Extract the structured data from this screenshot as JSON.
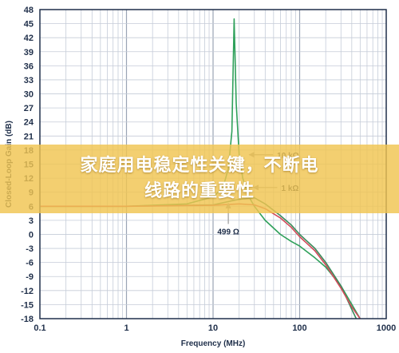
{
  "banner": {
    "line1": "家庭用电稳定性关键，不断电",
    "line2": "线路的重要性"
  },
  "chart_data": {
    "type": "line",
    "xlabel": "Frequency (MHz)",
    "ylabel": "Closed-Loop Gain (dB)",
    "xscale": "log",
    "xlim": [
      0.1,
      1000
    ],
    "ylim": [
      -18,
      48
    ],
    "x_ticks": [
      "0.1",
      "1",
      "10",
      "100",
      "1000"
    ],
    "y_ticks": [
      48,
      45,
      42,
      39,
      36,
      33,
      30,
      27,
      24,
      21,
      18,
      15,
      12,
      9,
      6,
      3,
      0,
      -3,
      -6,
      -9,
      -12,
      -15,
      -18
    ],
    "grid": true,
    "series": [
      {
        "name": "10 kΩ",
        "color": "#2ea05a",
        "x": [
          0.1,
          1,
          5,
          10,
          13,
          15,
          16.5,
          17.5,
          18.5,
          20,
          22,
          26,
          30,
          40,
          60,
          80,
          100,
          150,
          200,
          300,
          500
        ],
        "y": [
          6,
          6,
          6.5,
          8,
          10,
          14,
          22,
          46,
          28,
          17,
          12,
          8,
          6,
          3,
          0,
          -1.5,
          -2.5,
          -5,
          -7,
          -11,
          -18
        ]
      },
      {
        "name": "1 kΩ",
        "color": "#3a8a5a",
        "x": [
          0.1,
          1,
          10,
          20,
          30,
          40,
          60,
          80,
          100,
          150,
          200,
          300,
          400,
          450
        ],
        "y": [
          6,
          6,
          6.3,
          7.5,
          7.8,
          6.5,
          4,
          2,
          0,
          -3,
          -6,
          -11,
          -16,
          -18
        ]
      },
      {
        "name": "499 Ω",
        "color": "#d24a5a",
        "x": [
          0.1,
          1,
          10,
          20,
          30,
          40,
          60,
          80,
          100,
          150,
          200,
          300,
          400,
          500
        ],
        "y": [
          6,
          6,
          6.2,
          6.5,
          6.3,
          5.5,
          3.5,
          1.5,
          -0.5,
          -3.5,
          -6.5,
          -11.5,
          -15.5,
          -18
        ]
      }
    ],
    "annotations": [
      {
        "text": "10 kΩ",
        "target_x": 25,
        "target_y": 17
      },
      {
        "text": "1 kΩ",
        "target_x": 28,
        "target_y": 10
      },
      {
        "text": "499 Ω",
        "target_x": 15,
        "target_y": 7
      }
    ]
  }
}
